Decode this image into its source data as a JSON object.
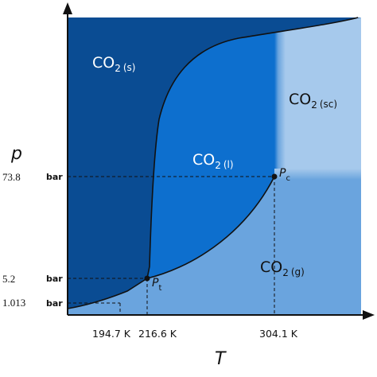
{
  "axes": {
    "y_name": "p",
    "x_name": "T"
  },
  "phases": {
    "solid": {
      "base": "CO",
      "sub": "2",
      "state": "(s)"
    },
    "liquid": {
      "base": "CO",
      "sub": "2",
      "state": "(l)"
    },
    "supercritical": {
      "base": "CO",
      "sub": "2",
      "state": "(sc)"
    },
    "gas": {
      "base": "CO",
      "sub": "2",
      "state": "(g)"
    }
  },
  "y_ticks": [
    {
      "value": "73.8",
      "unit": "bar"
    },
    {
      "value": "5.2",
      "unit": "bar"
    },
    {
      "value": "1.013",
      "unit": "bar"
    }
  ],
  "x_ticks": [
    "194.7 K",
    "216.6  K",
    "304.1 K"
  ],
  "points": {
    "critical": {
      "base": "P",
      "sub": "c"
    },
    "triple": {
      "base": "P",
      "sub": "t"
    }
  },
  "colors": {
    "solid": "#0a4c93",
    "liquid": "#0d6fce",
    "gas": "#6aa4de",
    "supercritical": "#a6c9ec",
    "curve": "#111111"
  }
}
